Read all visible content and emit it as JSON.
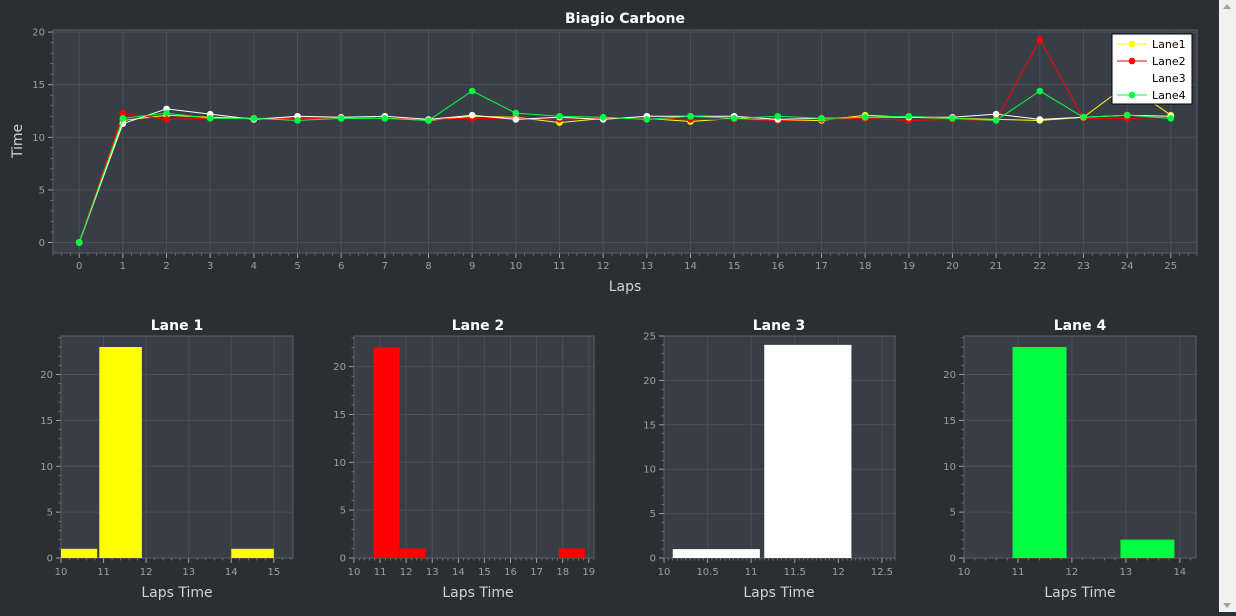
{
  "chart_data": [
    {
      "type": "line",
      "title": "Biagio Carbone",
      "xlabel": "Laps",
      "ylabel": "Time",
      "xlim": [
        -0.6,
        25.6
      ],
      "ylim": [
        -1,
        20.2
      ],
      "x": [
        0,
        1,
        2,
        3,
        4,
        5,
        6,
        7,
        8,
        9,
        10,
        11,
        12,
        13,
        14,
        15,
        16,
        17,
        18,
        19,
        20,
        21,
        22,
        23,
        24,
        25
      ],
      "xticks": [
        0,
        1,
        2,
        3,
        4,
        5,
        6,
        7,
        8,
        9,
        10,
        11,
        12,
        13,
        14,
        15,
        16,
        17,
        18,
        19,
        20,
        21,
        22,
        23,
        24,
        25
      ],
      "yticks": [
        0,
        5,
        10,
        15,
        20
      ],
      "grid": true,
      "legend_position": "top-right",
      "series": [
        {
          "name": "Lane1",
          "color": "#ffff00",
          "values": [
            0,
            11.6,
            12.1,
            11.9,
            11.8,
            11.8,
            11.8,
            11.9,
            11.6,
            12.0,
            11.9,
            11.4,
            11.8,
            11.8,
            11.5,
            11.8,
            11.6,
            11.6,
            12.1,
            11.9,
            11.8,
            11.7,
            11.6,
            11.9,
            15.0,
            12.1
          ]
        },
        {
          "name": "Lane2",
          "color": "#ff0000",
          "values": [
            0,
            12.3,
            11.7,
            11.8,
            11.7,
            11.8,
            11.8,
            11.9,
            11.7,
            11.8,
            11.8,
            11.7,
            11.8,
            11.8,
            11.7,
            11.7,
            11.6,
            11.7,
            11.8,
            11.6,
            11.7,
            11.6,
            19.3,
            11.8,
            11.8,
            11.9
          ]
        },
        {
          "name": "Lane3",
          "color": "#ffffff",
          "values": [
            0,
            11.3,
            12.7,
            12.2,
            11.7,
            12.0,
            11.9,
            12.0,
            11.7,
            12.1,
            11.7,
            11.9,
            11.7,
            12.0,
            12.0,
            12.0,
            11.7,
            11.8,
            11.9,
            11.9,
            11.9,
            12.2,
            11.7,
            11.9,
            12.1,
            12.0
          ]
        },
        {
          "name": "Lane4",
          "color": "#00ff40",
          "values": [
            0,
            11.8,
            12.3,
            11.8,
            11.8,
            11.6,
            11.8,
            11.8,
            11.6,
            14.4,
            12.3,
            12.0,
            11.9,
            11.7,
            12.0,
            11.8,
            12.0,
            11.8,
            11.9,
            12.0,
            11.8,
            11.6,
            14.4,
            11.9,
            12.1,
            11.8
          ]
        }
      ]
    },
    {
      "type": "bar",
      "title": "Lane 1",
      "xlabel": "Laps Time",
      "color": "#ffff00",
      "xlim": [
        10,
        15.45
      ],
      "ylim": [
        0,
        24.2
      ],
      "xticks": [
        10,
        11,
        12,
        13,
        14,
        15
      ],
      "xminor": 0.2,
      "yticks": [
        0,
        5,
        10,
        15,
        20
      ],
      "yminor": 1,
      "bins": [
        {
          "start": 10.0,
          "end": 10.85,
          "value": 1
        },
        {
          "start": 10.9,
          "end": 11.9,
          "value": 23
        },
        {
          "start": 14.0,
          "end": 15.0,
          "value": 1
        }
      ]
    },
    {
      "type": "bar",
      "title": "Lane 2",
      "xlabel": "Laps Time",
      "color": "#ff0000",
      "xlim": [
        10,
        19.2
      ],
      "ylim": [
        0,
        23.2
      ],
      "xticks": [
        10,
        11,
        12,
        13,
        14,
        15,
        16,
        17,
        18,
        19
      ],
      "xminor": 0.2,
      "yticks": [
        0,
        5,
        10,
        15,
        20
      ],
      "yminor": 1,
      "bins": [
        {
          "start": 10.75,
          "end": 11.75,
          "value": 22
        },
        {
          "start": 11.75,
          "end": 12.75,
          "value": 1
        },
        {
          "start": 17.85,
          "end": 18.85,
          "value": 1
        }
      ]
    },
    {
      "type": "bar",
      "title": "Lane 3",
      "xlabel": "Laps Time",
      "color": "#ffffff",
      "xlim": [
        10,
        12.65
      ],
      "ylim": [
        0,
        25
      ],
      "xticks": [
        10,
        10.5,
        11,
        11.5,
        12,
        12.5
      ],
      "xtick_labels": [
        "10",
        "10.5",
        "11",
        "11.5",
        "12",
        "12.5"
      ],
      "xminor": 0.05,
      "yticks": [
        0,
        5,
        10,
        15,
        20,
        25
      ],
      "yminor": 1,
      "bins": [
        {
          "start": 10.1,
          "end": 11.1,
          "value": 1
        },
        {
          "start": 11.15,
          "end": 12.15,
          "value": 24
        }
      ]
    },
    {
      "type": "bar",
      "title": "Lane 4",
      "xlabel": "Laps Time",
      "color": "#00ff40",
      "xlim": [
        10,
        14.3
      ],
      "ylim": [
        0,
        24.2
      ],
      "xticks": [
        10,
        11,
        12,
        13,
        14
      ],
      "xminor": 0.2,
      "yticks": [
        0,
        5,
        10,
        15,
        20
      ],
      "yminor": 1,
      "bins": [
        {
          "start": 10.9,
          "end": 11.9,
          "value": 23
        },
        {
          "start": 12.9,
          "end": 13.9,
          "value": 2
        }
      ]
    }
  ]
}
